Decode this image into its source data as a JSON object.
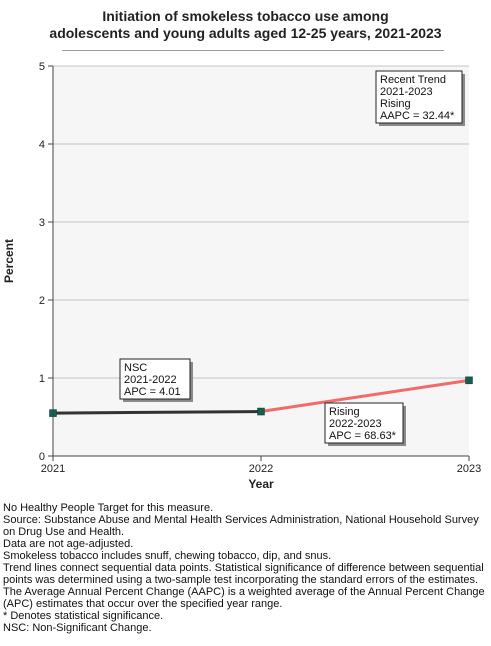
{
  "title_line1": "Initiation of smokeless tobacco use among",
  "title_line2": "adolescents and young adults aged 12-25 years, 2021-2023",
  "chart_data": {
    "type": "line",
    "title": "Initiation of smokeless tobacco use among adolescents and young adults aged 12-25 years, 2021-2023",
    "xlabel": "Year",
    "ylabel": "Percent",
    "x": [
      "2021",
      "2022",
      "2023"
    ],
    "yticks": [
      0,
      1,
      2,
      3,
      4,
      5
    ],
    "ylim": [
      0,
      5
    ],
    "grid": true,
    "series": [
      {
        "values": [
          0.55,
          0.57,
          0.97
        ],
        "marker_color": "#1a5c4f"
      }
    ],
    "segments": [
      {
        "from": "2021",
        "to": "2022",
        "color": "#333333",
        "label": [
          "NSC",
          "2021-2022",
          "APC =  4.01"
        ]
      },
      {
        "from": "2022",
        "to": "2023",
        "color": "#f26b6b",
        "label": [
          "Rising",
          "2022-2023",
          "APC = 68.63*"
        ]
      }
    ],
    "trend_box": [
      "Recent Trend",
      "2021-2023",
      "Rising",
      "AAPC = 32.44*"
    ]
  },
  "footnotes": [
    "No Healthy People Target for this measure.",
    "Source: Substance Abuse and Mental Health Services Administration, National Household Survey on Drug Use and Health.",
    "Data are not age-adjusted.",
    "Smokeless tobacco includes snuff, chewing tobacco, dip, and snus.",
    "Trend lines connect sequential data points. Statistical significance of difference between sequential points was determined using a two-sample test incorporating the standard errors of the estimates.",
    "The Average Annual Percent Change (AAPC) is a weighted average of the Annual Percent Change (APC) estimates that occur over the specified year range.",
    "* Denotes statistical significance.",
    "NSC: Non-Significant Change."
  ]
}
